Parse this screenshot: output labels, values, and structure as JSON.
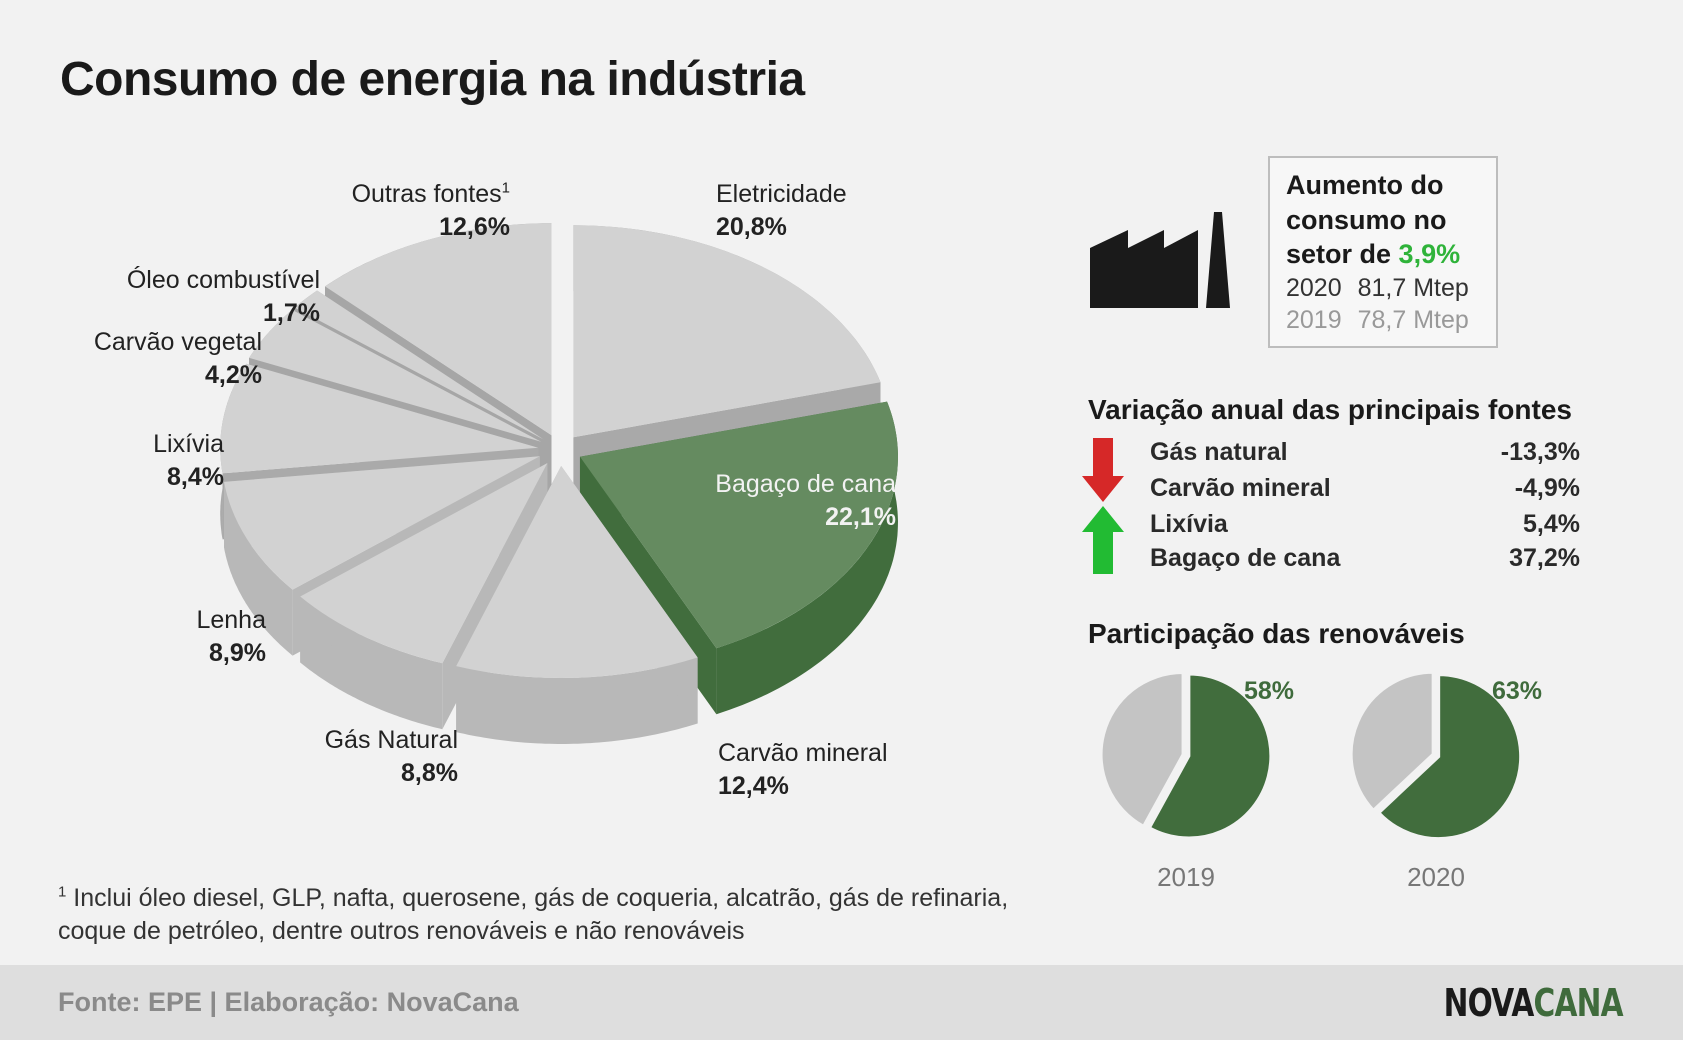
{
  "title": "Consumo de energia na indústria",
  "chart_data": [
    {
      "type": "pie",
      "title": "Consumo de energia na indústria",
      "slices": [
        {
          "label": "Eletricidade",
          "value": 20.8,
          "pct_label": "20,8%",
          "color": "#d2d2d2",
          "side": "#a9a9a9"
        },
        {
          "label": "Bagaço de cana",
          "value": 22.1,
          "pct_label": "22,1%",
          "color": "#658b60",
          "side": "#416d3d"
        },
        {
          "label": "Carvão mineral",
          "value": 12.4,
          "pct_label": "12,4%",
          "color": "#d2d2d2",
          "side": "#b8b8b8"
        },
        {
          "label": "Gás Natural",
          "value": 8.8,
          "pct_label": "8,8%",
          "color": "#d2d2d2",
          "side": "#b8b8b8"
        },
        {
          "label": "Lenha",
          "value": 8.9,
          "pct_label": "8,9%",
          "color": "#d2d2d2",
          "side": "#b8b8b8"
        },
        {
          "label": "Lixívia",
          "value": 8.4,
          "pct_label": "8,4%",
          "color": "#d2d2d2",
          "side": "#aaaaaa"
        },
        {
          "label": "Carvão vegetal",
          "value": 4.2,
          "pct_label": "4,2%",
          "color": "#d2d2d2",
          "side": "#a6a6a6"
        },
        {
          "label": "Óleo combustível",
          "value": 1.7,
          "pct_label": "1,7%",
          "color": "#d2d2d2",
          "side": "#a6a6a6"
        },
        {
          "label": "Outras fontes",
          "footnote_mark": "1",
          "value": 12.6,
          "pct_label": "12,6%",
          "color": "#d2d2d2",
          "side": "#a6a6a6"
        }
      ]
    },
    {
      "type": "pie",
      "title": "Participação das renováveis",
      "year": "2019",
      "slices": [
        {
          "label": "renováveis",
          "value": 58,
          "pct_label": "58%",
          "color": "#416d3d"
        },
        {
          "label": "não renováveis",
          "value": 42,
          "color": "#c4c4c4"
        }
      ]
    },
    {
      "type": "pie",
      "title": "Participação das renováveis",
      "year": "2020",
      "slices": [
        {
          "label": "renováveis",
          "value": 63,
          "pct_label": "63%",
          "color": "#416d3d"
        },
        {
          "label": "não renováveis",
          "value": 37,
          "color": "#c4c4c4"
        }
      ]
    }
  ],
  "increase": {
    "headline_pre": "Aumento do consumo no setor de ",
    "headline_value": "3,9%",
    "rows": [
      {
        "year": "2020",
        "value": "81,7 Mtep"
      },
      {
        "year": "2019",
        "value": "78,7 Mtep"
      }
    ]
  },
  "variation": {
    "title": "Variação anual das principais fontes",
    "rows": [
      {
        "label": "Gás natural",
        "value": "-13,3%",
        "direction": "down"
      },
      {
        "label": "Carvão mineral",
        "value": "-4,9%",
        "direction": "down"
      },
      {
        "label": "Lixívia",
        "value": "5,4%",
        "direction": "up"
      },
      {
        "label": "Bagaço de cana",
        "value": "37,2%",
        "direction": "up"
      }
    ],
    "down_color": "#d62828",
    "up_color": "#22bb33"
  },
  "renewables": {
    "title": "Participação das renováveis"
  },
  "footnote": {
    "mark": "1",
    "text_line1": "Inclui óleo diesel, GLP, nafta, querosene, gás de coqueria, alcatrão, gás de refinaria,",
    "text_line2": "coque de petróleo, dentre outros renováveis e não renováveis"
  },
  "footer": {
    "source": "Fonte: EPE | Elaboração: NovaCana",
    "logo_nova": "NOVA",
    "logo_cana": "CANA"
  }
}
